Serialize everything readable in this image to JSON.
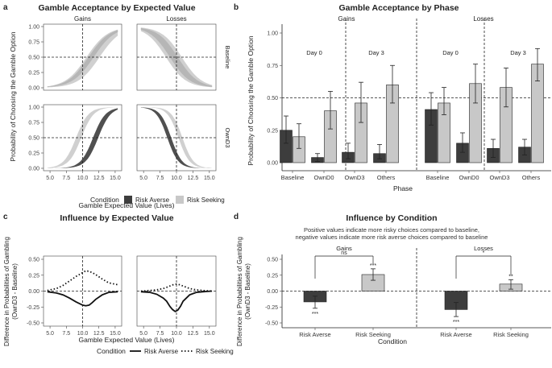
{
  "panel_a": {
    "letter": "a",
    "title": "Gamble Acceptance by Expected Value",
    "ylabel": "Probability of Choosing the Gamble Option",
    "xlabel": "Gamble Expected Value (Lives)",
    "col_labels": [
      "Gains",
      "Losses"
    ],
    "row_labels": [
      "Baseline",
      "OwnD3"
    ],
    "yticks": [
      "0.00",
      "0.25",
      "0.50",
      "0.75",
      "1.00"
    ],
    "xticks": [
      "5.0",
      "7.5",
      "10.0",
      "12.5",
      "15.0"
    ]
  },
  "panel_b": {
    "letter": "b",
    "title": "Gamble Acceptance by Phase",
    "ylabel": "Probability of Choosing the Gamble Option",
    "xlabel": "Phase",
    "gains_label": "Gains",
    "losses_label": "Losses",
    "day0_label": "Day 0",
    "day3_label": "Day 3",
    "yticks": [
      "0.00",
      "0.25",
      "0.50",
      "0.75",
      "1.00"
    ]
  },
  "panel_c": {
    "letter": "c",
    "title": "Influence by Expected Value",
    "ylabel_line1": "Difference in Probabilities of Gambling",
    "ylabel_line2": "(OwnD3 - Baseline)",
    "xlabel": "Gamble Expected Value (Lives)",
    "yticks": [
      "-0.50",
      "-0.25",
      "0.00",
      "0.25",
      "0.50"
    ],
    "xticks": [
      "5.0",
      "7.5",
      "10.0",
      "12.5",
      "15.0"
    ]
  },
  "panel_d": {
    "letter": "d",
    "title": "Influence by Condition",
    "subtitle_line1": "Positive values indicate more risky choices compared to baseline,",
    "subtitle_line2": "negative values indicate more risk averse choices compared to baseline",
    "ylabel_line1": "Difference in Probabilities of Gambling",
    "ylabel_line2": "(OwnD3 - Baseline)",
    "xlabel": "Condition",
    "gains_label": "Gains",
    "losses_label": "Losses",
    "gains_sig": "ns",
    "losses_sig": "*",
    "yticks": [
      "-0.50",
      "-0.25",
      "0.00",
      "0.25",
      "0.50"
    ]
  },
  "legend_ab": {
    "title": "Condition",
    "items": [
      "Risk Averse",
      "Risk Seeking"
    ]
  },
  "legend_c": {
    "title": "Condition",
    "items": [
      "Risk Averse",
      "Risk Seeking"
    ]
  },
  "colors": {
    "risk_averse": "#3d3d3d",
    "risk_seeking": "#c8c8c8",
    "panel_bg": "#ebebeb",
    "strip_bg": "#d9d9d9"
  },
  "chart_data": [
    {
      "id": "a",
      "type": "line",
      "title": "Gamble Acceptance by Expected Value",
      "xlabel": "Gamble Expected Value (Lives)",
      "ylabel": "Probability of Choosing the Gamble Option",
      "xlim": [
        4,
        16
      ],
      "ylim": [
        0,
        1
      ],
      "ref_x": 10,
      "ref_y": 0.5,
      "facets": [
        {
          "row": "Baseline",
          "col": "Gains",
          "series": [
            {
              "name": "Risk Averse",
              "midpoint": 11.3,
              "slope": 0.62,
              "band": 0.4
            },
            {
              "name": "Risk Seeking",
              "midpoint": 11.6,
              "slope": 0.62,
              "band": 1.0
            }
          ]
        },
        {
          "row": "Baseline",
          "col": "Losses",
          "series": [
            {
              "name": "Risk Averse",
              "midpoint": 9.6,
              "slope": -0.66,
              "band": 0.6
            },
            {
              "name": "Risk Seeking",
              "midpoint": 9.6,
              "slope": -0.66,
              "band": 1.2
            }
          ]
        },
        {
          "row": "OwnD3",
          "col": "Gains",
          "series": [
            {
              "name": "Risk Averse",
              "midpoint": 12.0,
              "slope": 1.05,
              "band": 0.4
            },
            {
              "name": "Risk Seeking",
              "midpoint": 9.4,
              "slope": 1.05,
              "band": 0.4
            }
          ]
        },
        {
          "row": "OwnD3",
          "col": "Losses",
          "series": [
            {
              "name": "Risk Averse",
              "midpoint": 8.9,
              "slope": -1.2,
              "band": 0.3
            },
            {
              "name": "Risk Seeking",
              "midpoint": 10.6,
              "slope": -1.2,
              "band": 0.3
            }
          ]
        }
      ]
    },
    {
      "id": "b",
      "type": "bar",
      "title": "Gamble Acceptance by Phase",
      "xlabel": "Phase",
      "ylabel": "Probability of Choosing the Gamble Option",
      "ylim": [
        0,
        1
      ],
      "ref_y": 0.5,
      "categories": [
        "Baseline",
        "OwnD0",
        "OwnD3",
        "Others"
      ],
      "groups": [
        {
          "name": "Gains",
          "series": [
            {
              "name": "Risk Averse",
              "values": [
                0.25,
                0.04,
                0.08,
                0.07
              ],
              "lower": [
                0.15,
                0.01,
                0.03,
                0.03
              ],
              "upper": [
                0.36,
                0.07,
                0.15,
                0.14
              ]
            },
            {
              "name": "Risk Seeking",
              "values": [
                0.2,
                0.4,
                0.46,
                0.6
              ],
              "lower": [
                0.11,
                0.26,
                0.31,
                0.46
              ],
              "upper": [
                0.3,
                0.55,
                0.62,
                0.75
              ]
            }
          ]
        },
        {
          "name": "Losses",
          "series": [
            {
              "name": "Risk Averse",
              "values": [
                0.41,
                0.15,
                0.11,
                0.12
              ],
              "lower": [
                0.29,
                0.08,
                0.04,
                0.06
              ],
              "upper": [
                0.54,
                0.23,
                0.18,
                0.18
              ]
            },
            {
              "name": "Risk Seeking",
              "values": [
                0.46,
                0.61,
                0.58,
                0.76
              ],
              "lower": [
                0.37,
                0.46,
                0.43,
                0.63
              ],
              "upper": [
                0.58,
                0.76,
                0.73,
                0.88
              ]
            }
          ]
        }
      ]
    },
    {
      "id": "c",
      "type": "line",
      "title": "Influence by Expected Value",
      "xlabel": "Gamble Expected Value (Lives)",
      "ylabel": "Difference in Probabilities of Gambling (OwnD3 - Baseline)",
      "xlim": [
        4,
        16
      ],
      "ylim": [
        -0.5,
        0.5
      ],
      "ref_x": 10,
      "ref_y": 0,
      "facets": [
        {
          "col": "Gains",
          "series": [
            {
              "name": "Risk Averse",
              "x": [
                4.6,
                6,
                7,
                8,
                9,
                10,
                10.5,
                11,
                11.5,
                12,
                13,
                14,
                15.4
              ],
              "y": [
                -0.01,
                -0.03,
                -0.06,
                -0.11,
                -0.17,
                -0.22,
                -0.23,
                -0.22,
                -0.18,
                -0.13,
                -0.06,
                -0.02,
                -0.01
              ]
            },
            {
              "name": "Risk Seeking",
              "x": [
                4.6,
                6,
                7,
                8,
                9,
                10,
                10.5,
                11,
                11.5,
                12,
                13,
                14,
                15.4
              ],
              "y": [
                0.01,
                0.04,
                0.09,
                0.16,
                0.23,
                0.29,
                0.32,
                0.31,
                0.29,
                0.26,
                0.19,
                0.13,
                0.1
              ]
            }
          ]
        },
        {
          "col": "Losses",
          "series": [
            {
              "name": "Risk Averse",
              "x": [
                4.6,
                6,
                7,
                8,
                8.5,
                9,
                9.4,
                9.8,
                10.2,
                10.6,
                11,
                12,
                13,
                14,
                15.4
              ],
              "y": [
                -0.01,
                -0.02,
                -0.05,
                -0.11,
                -0.16,
                -0.24,
                -0.29,
                -0.32,
                -0.3,
                -0.24,
                -0.16,
                -0.06,
                -0.02,
                -0.01,
                0.0
              ]
            },
            {
              "name": "Risk Seeking",
              "x": [
                4.6,
                6,
                7,
                8,
                8.5,
                9,
                9.5,
                10,
                10.5,
                11,
                12,
                13,
                14,
                15.4
              ],
              "y": [
                0.0,
                0.01,
                0.02,
                0.04,
                0.06,
                0.08,
                0.1,
                0.11,
                0.1,
                0.08,
                0.04,
                0.02,
                0.01,
                0.0
              ]
            }
          ]
        }
      ]
    },
    {
      "id": "d",
      "type": "bar",
      "title": "Influence by Condition",
      "xlabel": "Condition",
      "ylabel": "Difference in Probabilities of Gambling (OwnD3 - Baseline)",
      "ylim": [
        -0.5,
        0.5
      ],
      "ref_y": 0,
      "categories": [
        "Risk Averse",
        "Risk Seeking"
      ],
      "groups": [
        {
          "name": "Gains",
          "comparison": "ns",
          "values": [
            -0.17,
            0.26
          ],
          "lower": [
            -0.27,
            0.17
          ],
          "upper": [
            -0.08,
            0.35
          ],
          "stars": [
            "***",
            "***"
          ]
        },
        {
          "name": "Losses",
          "comparison": "*",
          "values": [
            -0.29,
            0.11
          ],
          "lower": [
            -0.4,
            0.03
          ],
          "upper": [
            -0.18,
            0.18
          ],
          "stars": [
            "***",
            "**"
          ]
        }
      ]
    }
  ]
}
